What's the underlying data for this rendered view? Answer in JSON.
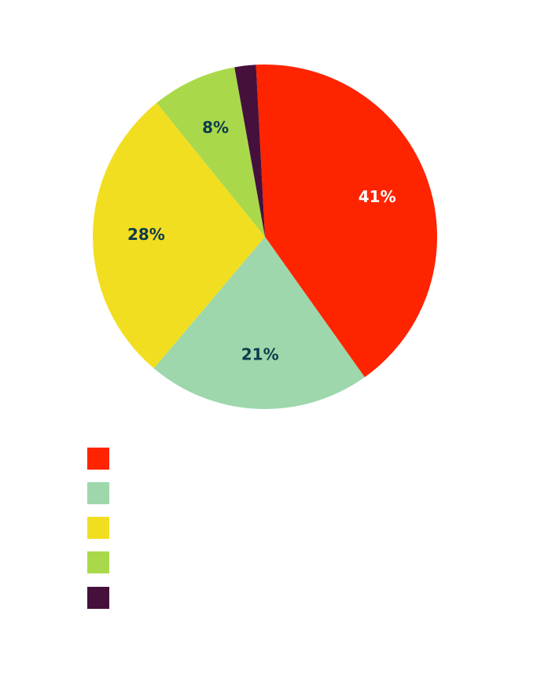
{
  "chart_data": {
    "type": "pie",
    "slices": [
      {
        "value": 41,
        "label": "41%",
        "color": "#ff2400",
        "label_color": "#ffffff"
      },
      {
        "value": 21,
        "label": "21%",
        "color": "#9dd7ab",
        "label_color": "#0e3b4d"
      },
      {
        "value": 28,
        "label": "28%",
        "color": "#f2de21",
        "label_color": "#0e3b4d"
      },
      {
        "value": 8,
        "label": "8%",
        "color": "#a9d94a",
        "label_color": "#0e3b4d"
      },
      {
        "value": 2,
        "label": "",
        "color": "#45103b",
        "label_color": "#ffffff"
      }
    ],
    "legend": {
      "position": "bottom-left",
      "labels_shown": false
    }
  }
}
